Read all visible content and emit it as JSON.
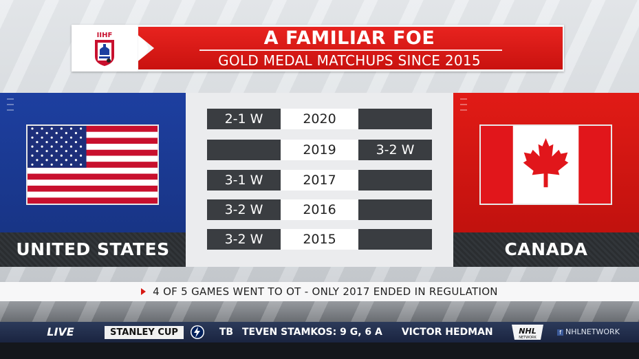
{
  "header": {
    "logo_text": "IIHF",
    "title": "A FAMILIAR FOE",
    "subtitle": "GOLD MEDAL MATCHUPS SINCE 2015"
  },
  "teams": {
    "left": {
      "name": "UNITED STATES",
      "flag_icon": "usa-flag-icon",
      "color": "#1d3fa0"
    },
    "right": {
      "name": "CANADA",
      "flag_icon": "canada-flag-icon",
      "color": "#e11b16"
    }
  },
  "results": [
    {
      "year": "2020",
      "usa": "2-1 W",
      "canada": ""
    },
    {
      "year": "2019",
      "usa": "",
      "canada": "3-2 W"
    },
    {
      "year": "2017",
      "usa": "3-1 W",
      "canada": ""
    },
    {
      "year": "2016",
      "usa": "3-2 W",
      "canada": ""
    },
    {
      "year": "2015",
      "usa": "3-2 W",
      "canada": ""
    }
  ],
  "note": "4 OF 5 GAMES WENT TO OT - ONLY 2017 ENDED IN REGULATION",
  "ticker": {
    "live": "LIVE",
    "section": "STANLEY CUP",
    "team_icon": "tampa-bay-lightning-icon",
    "team": "TB",
    "items": [
      "TEVEN STAMKOS: 9 G, 6 A",
      "VICTOR HEDMAN:"
    ],
    "network_logo": "NHL",
    "network_logo_sub": "NETWORK",
    "social": "NHLNETWORK"
  },
  "colors": {
    "accent_red": "#d71a14",
    "dark_cell": "#3a3d41"
  }
}
